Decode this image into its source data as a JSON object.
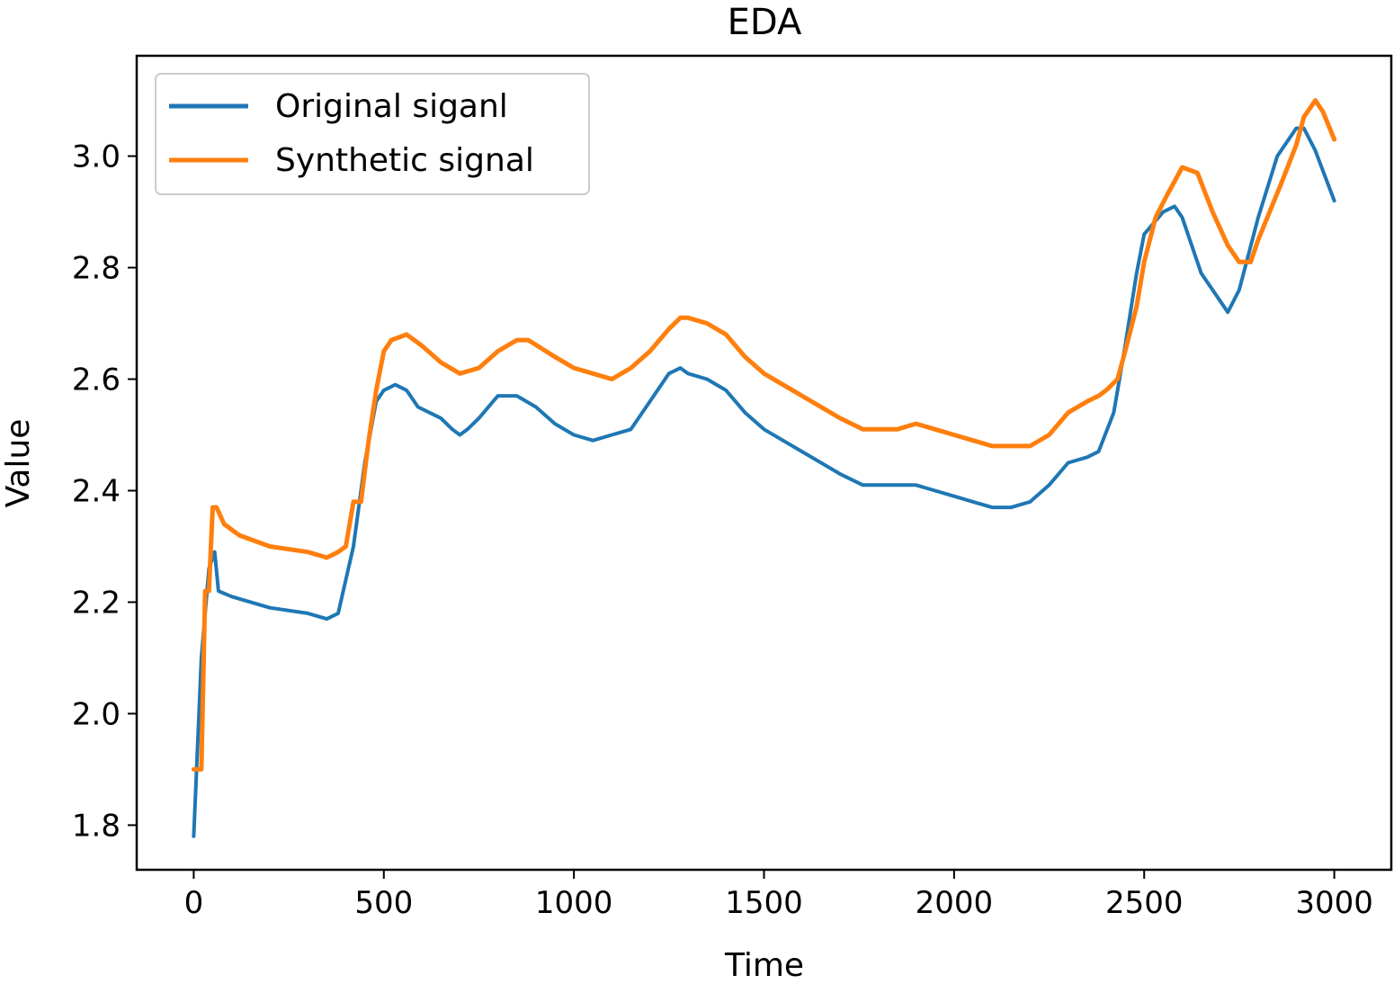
{
  "chart_data": {
    "type": "line",
    "title": "EDA",
    "xlabel": "Time",
    "ylabel": "Value",
    "xlim": [
      -150,
      3150
    ],
    "ylim": [
      1.72,
      3.18
    ],
    "xticks": [
      0,
      500,
      1000,
      1500,
      2000,
      2500,
      3000
    ],
    "xtick_labels": [
      "0",
      "500",
      "1000",
      "1500",
      "2000",
      "2500",
      "3000"
    ],
    "yticks": [
      1.8,
      2.0,
      2.2,
      2.4,
      2.6,
      2.8,
      3.0
    ],
    "ytick_labels": [
      "1.8",
      "2.0",
      "2.2",
      "2.4",
      "2.6",
      "2.8",
      "3.0"
    ],
    "grid": false,
    "legend_position": "top-left",
    "series": [
      {
        "name": "Original siganl",
        "color": "#1f77b4",
        "x": [
          0,
          20,
          40,
          55,
          65,
          100,
          200,
          300,
          350,
          380,
          420,
          450,
          480,
          500,
          530,
          560,
          590,
          620,
          650,
          680,
          700,
          720,
          750,
          800,
          850,
          900,
          950,
          1000,
          1050,
          1100,
          1150,
          1200,
          1250,
          1280,
          1300,
          1350,
          1400,
          1450,
          1500,
          1600,
          1700,
          1760,
          1800,
          1850,
          1900,
          1950,
          2000,
          2050,
          2100,
          2150,
          2200,
          2250,
          2300,
          2350,
          2380,
          2420,
          2450,
          2480,
          2500,
          2550,
          2580,
          2600,
          2650,
          2700,
          2720,
          2750,
          2800,
          2850,
          2900,
          2920,
          2950,
          3000
        ],
        "values": [
          1.78,
          2.1,
          2.26,
          2.29,
          2.22,
          2.21,
          2.19,
          2.18,
          2.17,
          2.18,
          2.3,
          2.45,
          2.56,
          2.58,
          2.59,
          2.58,
          2.55,
          2.54,
          2.53,
          2.51,
          2.5,
          2.51,
          2.53,
          2.57,
          2.57,
          2.55,
          2.52,
          2.5,
          2.49,
          2.5,
          2.51,
          2.56,
          2.61,
          2.62,
          2.61,
          2.6,
          2.58,
          2.54,
          2.51,
          2.47,
          2.43,
          2.41,
          2.41,
          2.41,
          2.41,
          2.4,
          2.39,
          2.38,
          2.37,
          2.37,
          2.38,
          2.41,
          2.45,
          2.46,
          2.47,
          2.54,
          2.66,
          2.79,
          2.86,
          2.9,
          2.91,
          2.89,
          2.79,
          2.74,
          2.72,
          2.76,
          2.89,
          3.0,
          3.05,
          3.05,
          3.01,
          2.92
        ]
      },
      {
        "name": "Synthetic signal",
        "color": "#ff7f0e",
        "x": [
          0,
          10,
          20,
          30,
          40,
          50,
          60,
          80,
          120,
          200,
          300,
          350,
          380,
          400,
          420,
          440,
          460,
          480,
          500,
          520,
          560,
          600,
          650,
          700,
          750,
          800,
          850,
          880,
          950,
          1000,
          1050,
          1100,
          1150,
          1200,
          1250,
          1280,
          1300,
          1350,
          1400,
          1450,
          1500,
          1600,
          1700,
          1760,
          1800,
          1850,
          1900,
          1950,
          2000,
          2050,
          2100,
          2150,
          2200,
          2250,
          2300,
          2350,
          2380,
          2400,
          2430,
          2450,
          2480,
          2500,
          2530,
          2560,
          2600,
          2640,
          2680,
          2720,
          2750,
          2780,
          2800,
          2830,
          2860,
          2900,
          2920,
          2950,
          2970,
          3000
        ],
        "values": [
          1.9,
          1.9,
          1.9,
          2.22,
          2.22,
          2.37,
          2.37,
          2.34,
          2.32,
          2.3,
          2.29,
          2.28,
          2.29,
          2.3,
          2.38,
          2.38,
          2.49,
          2.58,
          2.65,
          2.67,
          2.68,
          2.66,
          2.63,
          2.61,
          2.62,
          2.65,
          2.67,
          2.67,
          2.64,
          2.62,
          2.61,
          2.6,
          2.62,
          2.65,
          2.69,
          2.71,
          2.71,
          2.7,
          2.68,
          2.64,
          2.61,
          2.57,
          2.53,
          2.51,
          2.51,
          2.51,
          2.52,
          2.51,
          2.5,
          2.49,
          2.48,
          2.48,
          2.48,
          2.5,
          2.54,
          2.56,
          2.57,
          2.58,
          2.6,
          2.65,
          2.73,
          2.81,
          2.89,
          2.93,
          2.98,
          2.97,
          2.9,
          2.84,
          2.81,
          2.81,
          2.85,
          2.9,
          2.95,
          3.02,
          3.07,
          3.1,
          3.08,
          3.03
        ]
      }
    ]
  }
}
